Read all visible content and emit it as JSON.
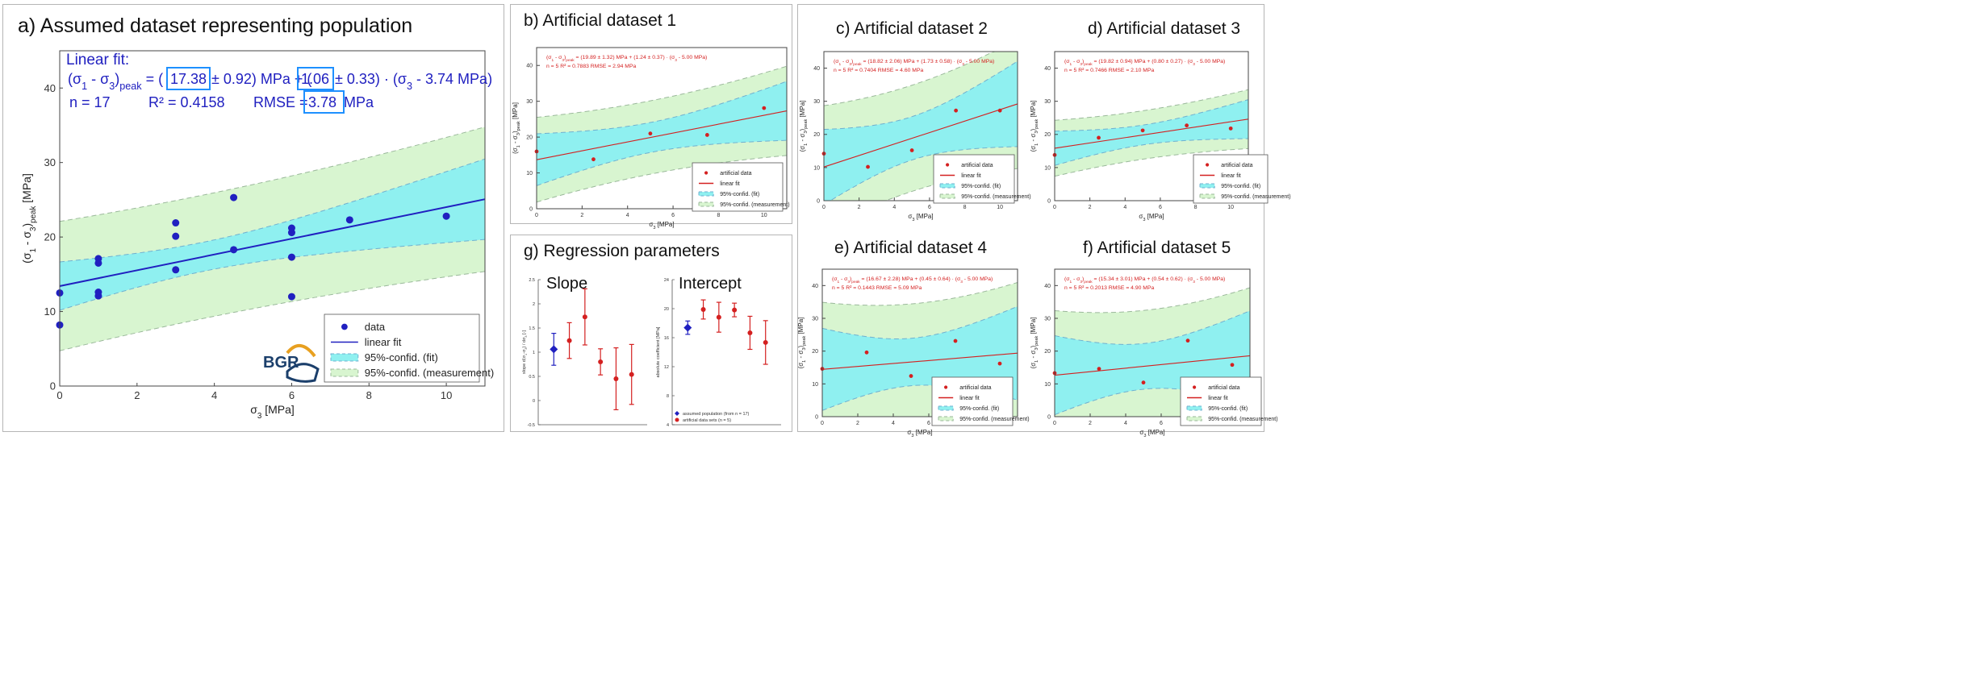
{
  "panel_titles": {
    "a": "a) Assumed dataset representing population",
    "b": "b) Artificial dataset 1",
    "c": "c) Artificial dataset 2",
    "d": "d) Artificial dataset 3",
    "e": "e) Artificial dataset 4",
    "f": "f) Artificial dataset 5",
    "g": "g) Regression parameters"
  },
  "labels": {
    "x_label": "σ3  [MPa]",
    "y_label": "(σ1 - σ3)peak  [MPa]",
    "y_label_g_slope": "slope  d(σ1-σ3) / dσ3  [-]",
    "y_label_g_intercept": "absolute coefficient  [MPa]",
    "logo": "BGR"
  },
  "colors": {
    "population": "#2020c0",
    "artificial": "#d42020",
    "fit_band": "#8ff0f0",
    "meas_band": "#d8f5d0",
    "highlight_box": "#1e90ff"
  },
  "legends": {
    "population": [
      "data",
      "linear fit",
      "95%-confid. (fit)",
      "95%-confid. (measurement)"
    ],
    "artificial": [
      "artificial data",
      "linear fit",
      "95%-confid. (fit)",
      "95%-confid. (measurement)"
    ],
    "g": [
      "assumed population (from n = 17)",
      "artificial data sets (n = 5)"
    ]
  },
  "annotations": {
    "a": {
      "line1": "Linear fit:",
      "line2_pre": "(σ1 - σ3)peak = (",
      "line2_intercept": "17.38",
      "line2_mid1": "± 0.92) MPa + (",
      "line2_slope": "1.06",
      "line2_mid2": "± 0.33) · (σ3 - 3.74 MPa)",
      "line3_n": "n  =  17",
      "line3_r2": "R² = 0.4158",
      "line3_rmse_pre": "RMSE = ",
      "line3_rmse": "3.78",
      "line3_rmse_unit": " MPa"
    },
    "b": {
      "line1": "(σ1 - σ3)peak = (19.89 ± 1.32) MPa + (1.24 ± 0.37) · (σ3 - 5.00 MPa)",
      "line2": "n  =  5        R² = 0.7883        RMSE = 2.94 MPa"
    },
    "c": {
      "line1": "(σ1 - σ3)peak = (18.82 ± 2.06) MPa + (1.73 ± 0.58) · (σ3 - 5.00 MPa)",
      "line2": "n  =  5        R² = 0.7404        RMSE = 4.60 MPa"
    },
    "d": {
      "line1": "(σ1 - σ3)peak = (19.82 ± 0.94) MPa + (0.80 ± 0.27) · (σ3 - 5.00 MPa)",
      "line2": "n  =  5        R² = 0.7466        RMSE = 2.10 MPa"
    },
    "e": {
      "line1": "(σ1 - σ3)peak = (16.67 ± 2.28) MPa + (0.45 ± 0.64) · (σ3 - 5.00 MPa)",
      "line2": "n  =  5        R² = 0.1443        RMSE = 5.09 MPa"
    },
    "f": {
      "line1": "(σ1 - σ3)peak = (15.34 ± 3.01) MPa + (0.54 ± 0.62) · (σ3 - 5.00 MPa)",
      "line2": "n  =  5        R² = 0.2013        RMSE = 4.90 MPa"
    }
  },
  "chart_data": [
    {
      "id": "a",
      "type": "scatter",
      "title": "a) Assumed dataset representing population",
      "xlabel": "σ3  [MPa]",
      "ylabel": "(σ1 - σ3)peak  [MPa]",
      "xlim": [
        0,
        11
      ],
      "ylim": [
        0,
        45
      ],
      "xticks": [
        0,
        2,
        4,
        6,
        8,
        10
      ],
      "yticks": [
        0,
        10,
        20,
        30,
        40
      ],
      "x": [
        0,
        0,
        1,
        1,
        1,
        1,
        3,
        3,
        3,
        4.5,
        4.5,
        6,
        6,
        6,
        6,
        7.5,
        10
      ],
      "y": [
        12.5,
        8.2,
        17.1,
        16.5,
        12.6,
        12.1,
        21.9,
        20.1,
        15.6,
        25.3,
        18.3,
        21.2,
        20.6,
        17.3,
        12.0,
        22.3,
        22.8
      ],
      "fit": {
        "intercept": 17.38,
        "slope": 1.06,
        "x0": 3.74,
        "n": 17,
        "rmse": 3.78
      },
      "legend": [
        "data",
        "linear fit",
        "95%-confid. (fit)",
        "95%-confid. (measurement)"
      ]
    },
    {
      "id": "b",
      "type": "scatter",
      "title": "b) Artificial dataset 1",
      "xlabel": "σ3  [MPa]",
      "ylabel": "(σ1 - σ3)peak  [MPa]",
      "xlim": [
        0,
        11
      ],
      "ylim": [
        0,
        45
      ],
      "xticks": [
        0,
        2,
        4,
        6,
        8,
        10
      ],
      "yticks": [
        0,
        10,
        20,
        30,
        40
      ],
      "x": [
        0,
        2.5,
        5,
        7.5,
        10
      ],
      "y": [
        16.0,
        13.8,
        21.0,
        20.6,
        28.1
      ],
      "fit": {
        "intercept": 19.89,
        "slope": 1.24,
        "x0": 5,
        "n": 5,
        "rmse": 2.94
      },
      "legend": [
        "artificial data",
        "linear fit",
        "95%-confid. (fit)",
        "95%-confid. (measurement)"
      ]
    },
    {
      "id": "c",
      "type": "scatter",
      "title": "c) Artificial dataset 2",
      "xlabel": "σ3  [MPa]",
      "ylabel": "(σ1 - σ3)peak  [MPa]",
      "xlim": [
        0,
        11
      ],
      "ylim": [
        0,
        45
      ],
      "xticks": [
        0,
        2,
        4,
        6,
        8,
        10
      ],
      "yticks": [
        0,
        10,
        20,
        30,
        40
      ],
      "x": [
        0,
        2.5,
        5,
        7.5,
        10
      ],
      "y": [
        14.2,
        10.2,
        15.2,
        27.2,
        27.2
      ],
      "fit": {
        "intercept": 18.82,
        "slope": 1.73,
        "x0": 5,
        "n": 5,
        "rmse": 4.6
      },
      "legend": [
        "artificial data",
        "linear fit",
        "95%-confid. (fit)",
        "95%-confid. (measurement)"
      ]
    },
    {
      "id": "d",
      "type": "scatter",
      "title": "d) Artificial dataset 3",
      "xlabel": "σ3  [MPa]",
      "ylabel": "(σ1 - σ3)peak  [MPa]",
      "xlim": [
        0,
        11
      ],
      "ylim": [
        0,
        45
      ],
      "xticks": [
        0,
        2,
        4,
        6,
        8,
        10
      ],
      "yticks": [
        0,
        10,
        20,
        30,
        40
      ],
      "x": [
        0,
        2.5,
        5,
        7.5,
        10
      ],
      "y": [
        13.8,
        19.0,
        21.2,
        22.7,
        21.8
      ],
      "fit": {
        "intercept": 19.82,
        "slope": 0.8,
        "x0": 5,
        "n": 5,
        "rmse": 2.1
      },
      "legend": [
        "artificial data",
        "linear fit",
        "95%-confid. (fit)",
        "95%-confid. (measurement)"
      ]
    },
    {
      "id": "e",
      "type": "scatter",
      "title": "e) Artificial dataset 4",
      "xlabel": "σ3  [MPa]",
      "ylabel": "(σ1 - σ3)peak  [MPa]",
      "xlim": [
        0,
        11
      ],
      "ylim": [
        0,
        45
      ],
      "xticks": [
        0,
        2,
        4,
        6,
        8,
        10
      ],
      "yticks": [
        0,
        10,
        20,
        30,
        40
      ],
      "x": [
        0,
        2.5,
        5,
        7.5,
        10
      ],
      "y": [
        14.6,
        19.6,
        12.4,
        23.1,
        16.2
      ],
      "fit": {
        "intercept": 16.67,
        "slope": 0.45,
        "x0": 5,
        "n": 5,
        "rmse": 5.09
      },
      "legend": [
        "artificial data",
        "linear fit",
        "95%-confid. (fit)",
        "95%-confid. (measurement)"
      ]
    },
    {
      "id": "f",
      "type": "scatter",
      "title": "f) Artificial dataset 5",
      "xlabel": "σ3  [MPa]",
      "ylabel": "(σ1 - σ3)peak  [MPa]",
      "xlim": [
        0,
        11
      ],
      "ylim": [
        0,
        45
      ],
      "xticks": [
        0,
        2,
        4,
        6,
        8,
        10
      ],
      "yticks": [
        0,
        10,
        20,
        30,
        40
      ],
      "x": [
        0,
        2.5,
        5,
        7.5,
        10
      ],
      "y": [
        13.3,
        14.6,
        10.4,
        23.2,
        15.8
      ],
      "fit": {
        "intercept": 15.34,
        "slope": 0.54,
        "x0": 5,
        "n": 5,
        "rmse": 4.9
      },
      "legend": [
        "artificial data",
        "linear fit",
        "95%-confid. (fit)",
        "95%-confid. (measurement)"
      ]
    },
    {
      "id": "g-slope",
      "type": "errorbar",
      "title": "Slope",
      "ylabel": "slope  d(σ1-σ3) / dσ3  [-]",
      "ylim": [
        -0.5,
        2.5
      ],
      "yticks": [
        -0.5,
        0,
        0.5,
        1,
        1.5,
        2,
        2.5
      ],
      "population": {
        "value": 1.06,
        "err": 0.33
      },
      "artificial": [
        {
          "value": 1.24,
          "err": 0.37
        },
        {
          "value": 1.73,
          "err": 0.58
        },
        {
          "value": 0.8,
          "err": 0.27
        },
        {
          "value": 0.45,
          "err": 0.64
        },
        {
          "value": 0.54,
          "err": 0.62
        }
      ]
    },
    {
      "id": "g-intercept",
      "type": "errorbar",
      "title": "Intercept",
      "ylabel": "absolute coefficient  [MPa]",
      "ylim": [
        4,
        24
      ],
      "yticks": [
        4,
        8,
        12,
        16,
        20,
        24
      ],
      "population": {
        "value": 17.38,
        "err": 0.92
      },
      "artificial": [
        {
          "value": 19.89,
          "err": 1.32
        },
        {
          "value": 18.82,
          "err": 2.06
        },
        {
          "value": 19.82,
          "err": 0.94
        },
        {
          "value": 16.67,
          "err": 2.28
        },
        {
          "value": 15.34,
          "err": 3.01
        }
      ]
    }
  ]
}
